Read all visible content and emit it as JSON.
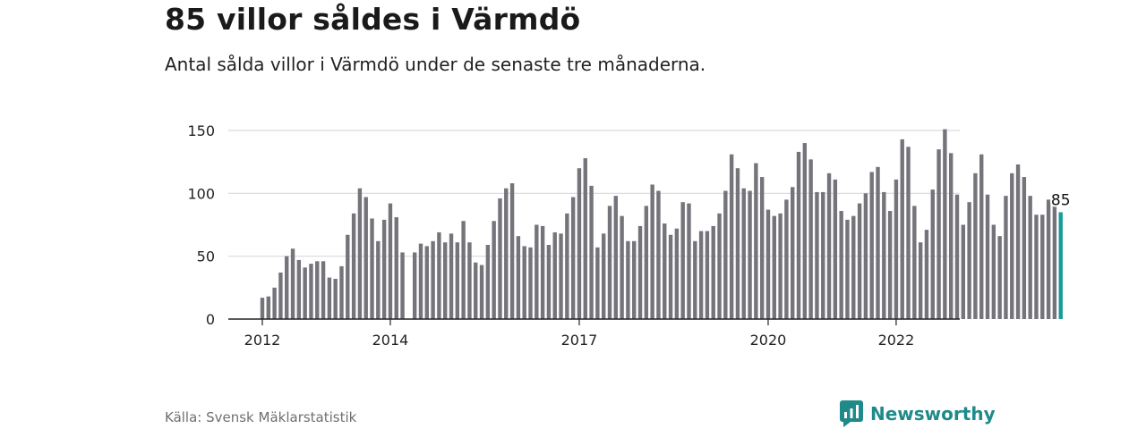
{
  "title": "85 villor såldes i Värmdö",
  "subtitle": "Antal sålda villor i Värmdö under de senaste tre månaderna.",
  "source": "Källa: Svensk Mäklarstatistik",
  "brand": {
    "name": "Newsworthy",
    "icon": "newsworthy-logo-icon"
  },
  "colors": {
    "bar": "#75747b",
    "highlight": "#1a9a9a",
    "grid": "#d9d9d9",
    "axis": "#222222",
    "brand": "#1f8a8a"
  },
  "chart_data": {
    "type": "bar",
    "ylim": [
      0,
      150
    ],
    "yticks": [
      0,
      50,
      100,
      150
    ],
    "xtick_labels": [
      {
        "label": "2012",
        "index": 0
      },
      {
        "label": "2014",
        "index": 21
      },
      {
        "label": "2017",
        "index": 52
      },
      {
        "label": "2020",
        "index": 83
      },
      {
        "label": "2022",
        "index": 104
      }
    ],
    "grid": true,
    "highlight_label": "85",
    "values": [
      17,
      18,
      25,
      37,
      50,
      56,
      47,
      41,
      44,
      46,
      46,
      33,
      32,
      42,
      67,
      84,
      104,
      97,
      80,
      62,
      79,
      92,
      81,
      53,
      0,
      53,
      60,
      58,
      62,
      69,
      61,
      68,
      61,
      78,
      61,
      45,
      43,
      59,
      78,
      96,
      104,
      108,
      66,
      58,
      57,
      75,
      74,
      59,
      69,
      68,
      84,
      97,
      120,
      128,
      106,
      57,
      68,
      90,
      98,
      82,
      62,
      62,
      74,
      90,
      107,
      102,
      76,
      67,
      72,
      93,
      92,
      62,
      70,
      70,
      74,
      84,
      102,
      131,
      120,
      104,
      102,
      124,
      113,
      87,
      82,
      84,
      95,
      105,
      133,
      140,
      127,
      101,
      101,
      116,
      111,
      86,
      79,
      82,
      92,
      100,
      117,
      121,
      101,
      86,
      111,
      143,
      137,
      90,
      61,
      71,
      103,
      135,
      151,
      132,
      99,
      75,
      93,
      116,
      131,
      99,
      75,
      66,
      98,
      116,
      123,
      113,
      98,
      83,
      83,
      95,
      90,
      85
    ]
  }
}
